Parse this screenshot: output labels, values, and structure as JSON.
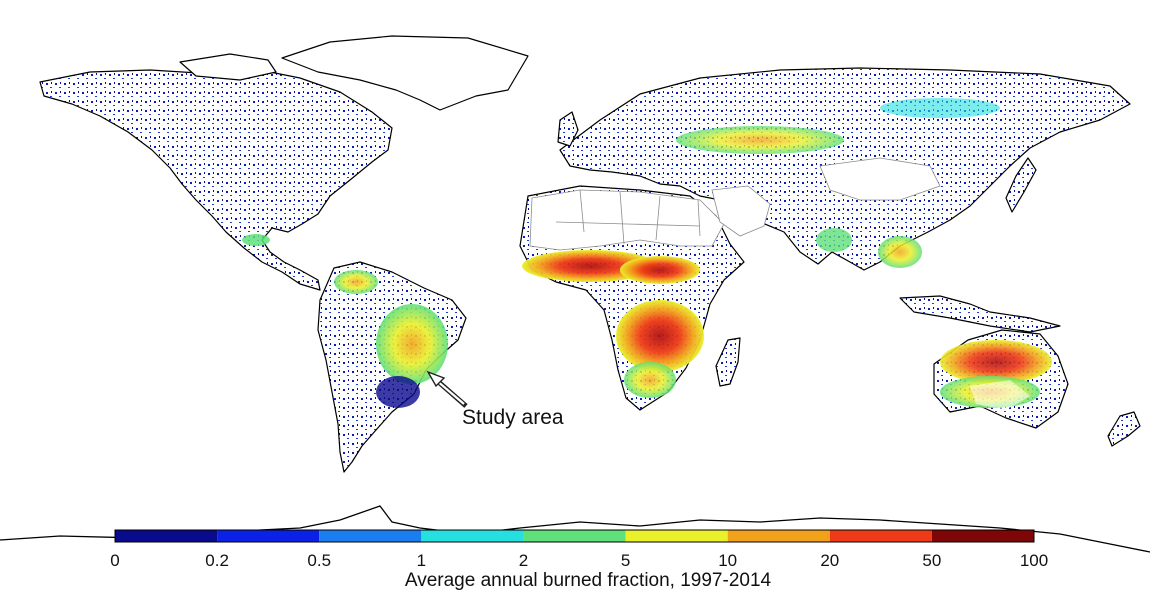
{
  "figure": {
    "callout_label": "Study area"
  },
  "colorbar": {
    "title": "Average annual burned fraction, 1997-2014",
    "ticks": [
      "0",
      "0.2",
      "0.5",
      "1",
      "2",
      "5",
      "10",
      "20",
      "50",
      "100"
    ],
    "colors": [
      "#0a0a8c",
      "#0b22e6",
      "#1a7ef0",
      "#26e0e0",
      "#5fe07a",
      "#eaf02a",
      "#f2a21a",
      "#ee3a16",
      "#7e0606"
    ]
  },
  "map": {
    "background": "#ffffff",
    "coastline_color": "#000000",
    "border_color": "#8c8c8c"
  }
}
